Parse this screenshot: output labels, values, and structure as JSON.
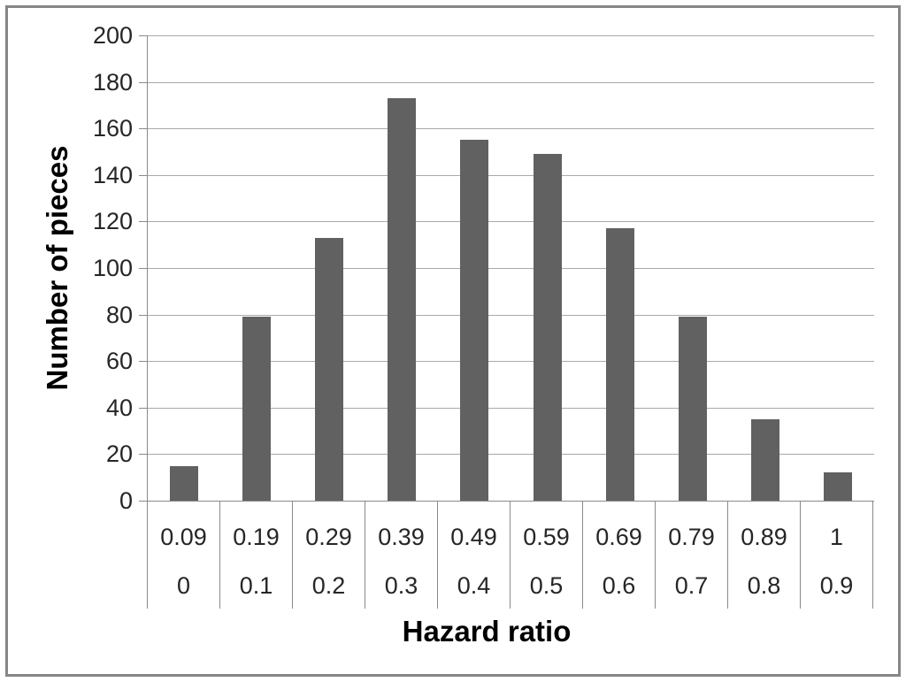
{
  "figure": {
    "background": "#ffffff",
    "frame_border_color": "#868686"
  },
  "chart_data": {
    "type": "bar",
    "title": "",
    "xlabel": "Hazard ratio",
    "ylabel": "Number of pieces",
    "ylim": [
      0,
      200
    ],
    "ytick_step": 20,
    "yticks": [
      0,
      20,
      40,
      60,
      80,
      100,
      120,
      140,
      160,
      180,
      200
    ],
    "categories_row1": [
      "0.09",
      "0.19",
      "0.29",
      "0.39",
      "0.49",
      "0.59",
      "0.69",
      "0.79",
      "0.89",
      "1"
    ],
    "categories_row2": [
      "0",
      "0.1",
      "0.2",
      "0.3",
      "0.4",
      "0.5",
      "0.6",
      "0.7",
      "0.8",
      "0.9"
    ],
    "values": [
      15,
      79,
      113,
      173,
      155,
      149,
      117,
      79,
      35,
      12
    ],
    "grid": true,
    "legend": false,
    "bar_gap_ratio": 0.61,
    "colors": {
      "bar": "#616161",
      "gridline": "#a9a9a9",
      "axis": "#8a8a8a",
      "tick_text": "#262626",
      "title_text": "#000000"
    }
  }
}
